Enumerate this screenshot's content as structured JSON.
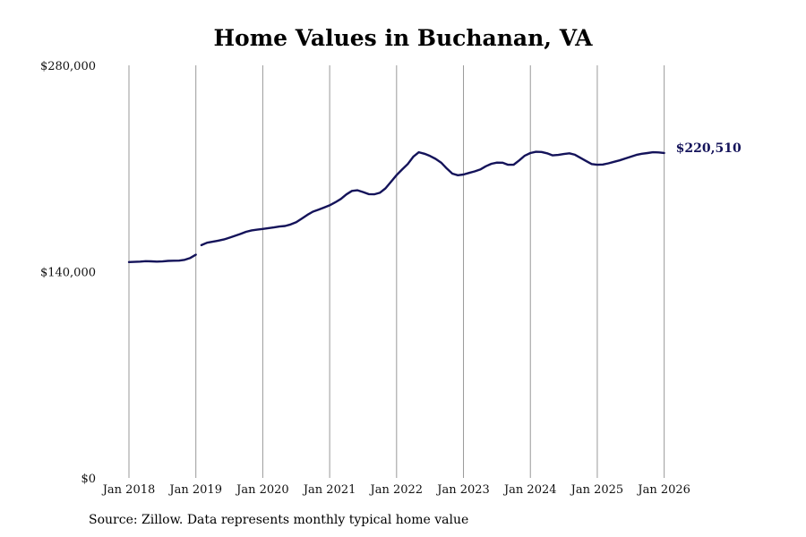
{
  "chart_data": {
    "type": "line",
    "title": "Home Values in Buchanan, VA",
    "xlabel": "",
    "ylabel": "",
    "ylim": [
      0,
      280000
    ],
    "x_range": [
      "2018-01",
      "2026-07"
    ],
    "y_ticks": [
      {
        "value": 0,
        "label": "$0"
      },
      {
        "value": 140000,
        "label": "$140,000"
      },
      {
        "value": 280000,
        "label": "$280,000"
      }
    ],
    "x_ticks": [
      {
        "date": "2018-01",
        "label": "Jan 2018"
      },
      {
        "date": "2019-01",
        "label": "Jan 2019"
      },
      {
        "date": "2020-01",
        "label": "Jan 2020"
      },
      {
        "date": "2021-01",
        "label": "Jan 2021"
      },
      {
        "date": "2022-01",
        "label": "Jan 2022"
      },
      {
        "date": "2023-01",
        "label": "Jan 2023"
      },
      {
        "date": "2024-01",
        "label": "Jan 2024"
      },
      {
        "date": "2025-01",
        "label": "Jan 2025"
      },
      {
        "date": "2026-01",
        "label": "Jan 2026"
      }
    ],
    "grid": {
      "vertical": true,
      "horizontal": false
    },
    "legend": "none",
    "line_color": "#14135a",
    "end_label": "$220,510",
    "series": [
      {
        "segments": [
          [
            [
              "2018-01",
              146500
            ],
            [
              "2018-02",
              146600
            ],
            [
              "2018-03",
              146800
            ],
            [
              "2018-04",
              147100
            ],
            [
              "2018-05",
              147000
            ],
            [
              "2018-06",
              146800
            ],
            [
              "2018-07",
              146900
            ],
            [
              "2018-08",
              147300
            ],
            [
              "2018-09",
              147400
            ],
            [
              "2018-10",
              147500
            ],
            [
              "2018-11",
              148000
            ],
            [
              "2018-12",
              149300
            ],
            [
              "2019-01",
              151500
            ]
          ],
          [
            [
              "2019-02",
              158000
            ],
            [
              "2019-03",
              159600
            ],
            [
              "2019-04",
              160300
            ],
            [
              "2019-05",
              161000
            ],
            [
              "2019-06",
              161800
            ],
            [
              "2019-07",
              163000
            ],
            [
              "2019-08",
              164300
            ],
            [
              "2019-09",
              165600
            ],
            [
              "2019-10",
              167000
            ],
            [
              "2019-11",
              168000
            ],
            [
              "2019-12",
              168500
            ],
            [
              "2020-01",
              169000
            ],
            [
              "2020-02",
              169500
            ],
            [
              "2020-03",
              170000
            ],
            [
              "2020-04",
              170600
            ],
            [
              "2020-05",
              171000
            ],
            [
              "2020-06",
              172000
            ],
            [
              "2020-07",
              173500
            ],
            [
              "2020-08",
              176000
            ],
            [
              "2020-09",
              178500
            ],
            [
              "2020-10",
              180700
            ],
            [
              "2020-11",
              182000
            ],
            [
              "2020-12",
              183500
            ],
            [
              "2021-01",
              185000
            ],
            [
              "2021-02",
              187000
            ],
            [
              "2021-03",
              189300
            ],
            [
              "2021-04",
              192400
            ],
            [
              "2021-05",
              194800
            ],
            [
              "2021-06",
              195200
            ],
            [
              "2021-07",
              194000
            ],
            [
              "2021-08",
              192600
            ],
            [
              "2021-09",
              192500
            ],
            [
              "2021-10",
              193500
            ],
            [
              "2021-11",
              196500
            ],
            [
              "2021-12",
              201000
            ],
            [
              "2022-01",
              205500
            ],
            [
              "2022-02",
              209300
            ],
            [
              "2022-03",
              213000
            ],
            [
              "2022-04",
              218000
            ],
            [
              "2022-05",
              221000
            ],
            [
              "2022-06",
              220000
            ],
            [
              "2022-07",
              218500
            ],
            [
              "2022-08",
              216500
            ],
            [
              "2022-09",
              214000
            ],
            [
              "2022-10",
              210000
            ],
            [
              "2022-11",
              206500
            ],
            [
              "2022-12",
              205400
            ],
            [
              "2023-01",
              205900
            ],
            [
              "2023-02",
              207000
            ],
            [
              "2023-03",
              208000
            ],
            [
              "2023-04",
              209300
            ],
            [
              "2023-05",
              211500
            ],
            [
              "2023-06",
              213200
            ],
            [
              "2023-07",
              214000
            ],
            [
              "2023-08",
              213900
            ],
            [
              "2023-09",
              212500
            ],
            [
              "2023-10",
              212600
            ],
            [
              "2023-11",
              215500
            ],
            [
              "2023-12",
              218700
            ],
            [
              "2024-01",
              220500
            ],
            [
              "2024-02",
              221300
            ],
            [
              "2024-03",
              221200
            ],
            [
              "2024-04",
              220300
            ],
            [
              "2024-05",
              218900
            ],
            [
              "2024-06",
              219200
            ],
            [
              "2024-07",
              219800
            ],
            [
              "2024-08",
              220300
            ],
            [
              "2024-09",
              219300
            ],
            [
              "2024-10",
              217200
            ],
            [
              "2024-11",
              215100
            ],
            [
              "2024-12",
              213000
            ],
            [
              "2025-01",
              212500
            ],
            [
              "2025-02",
              212700
            ],
            [
              "2025-03",
              213500
            ],
            [
              "2025-04",
              214500
            ],
            [
              "2025-05",
              215500
            ],
            [
              "2025-06",
              216800
            ],
            [
              "2025-07",
              218000
            ],
            [
              "2025-08",
              219200
            ],
            [
              "2025-09",
              220000
            ],
            [
              "2025-10",
              220500
            ],
            [
              "2025-11",
              221000
            ],
            [
              "2025-12",
              220900
            ],
            [
              "2026-01",
              220510
            ]
          ]
        ]
      }
    ]
  },
  "footer": {
    "source": "Source: Zillow. Data represents monthly typical home value"
  }
}
